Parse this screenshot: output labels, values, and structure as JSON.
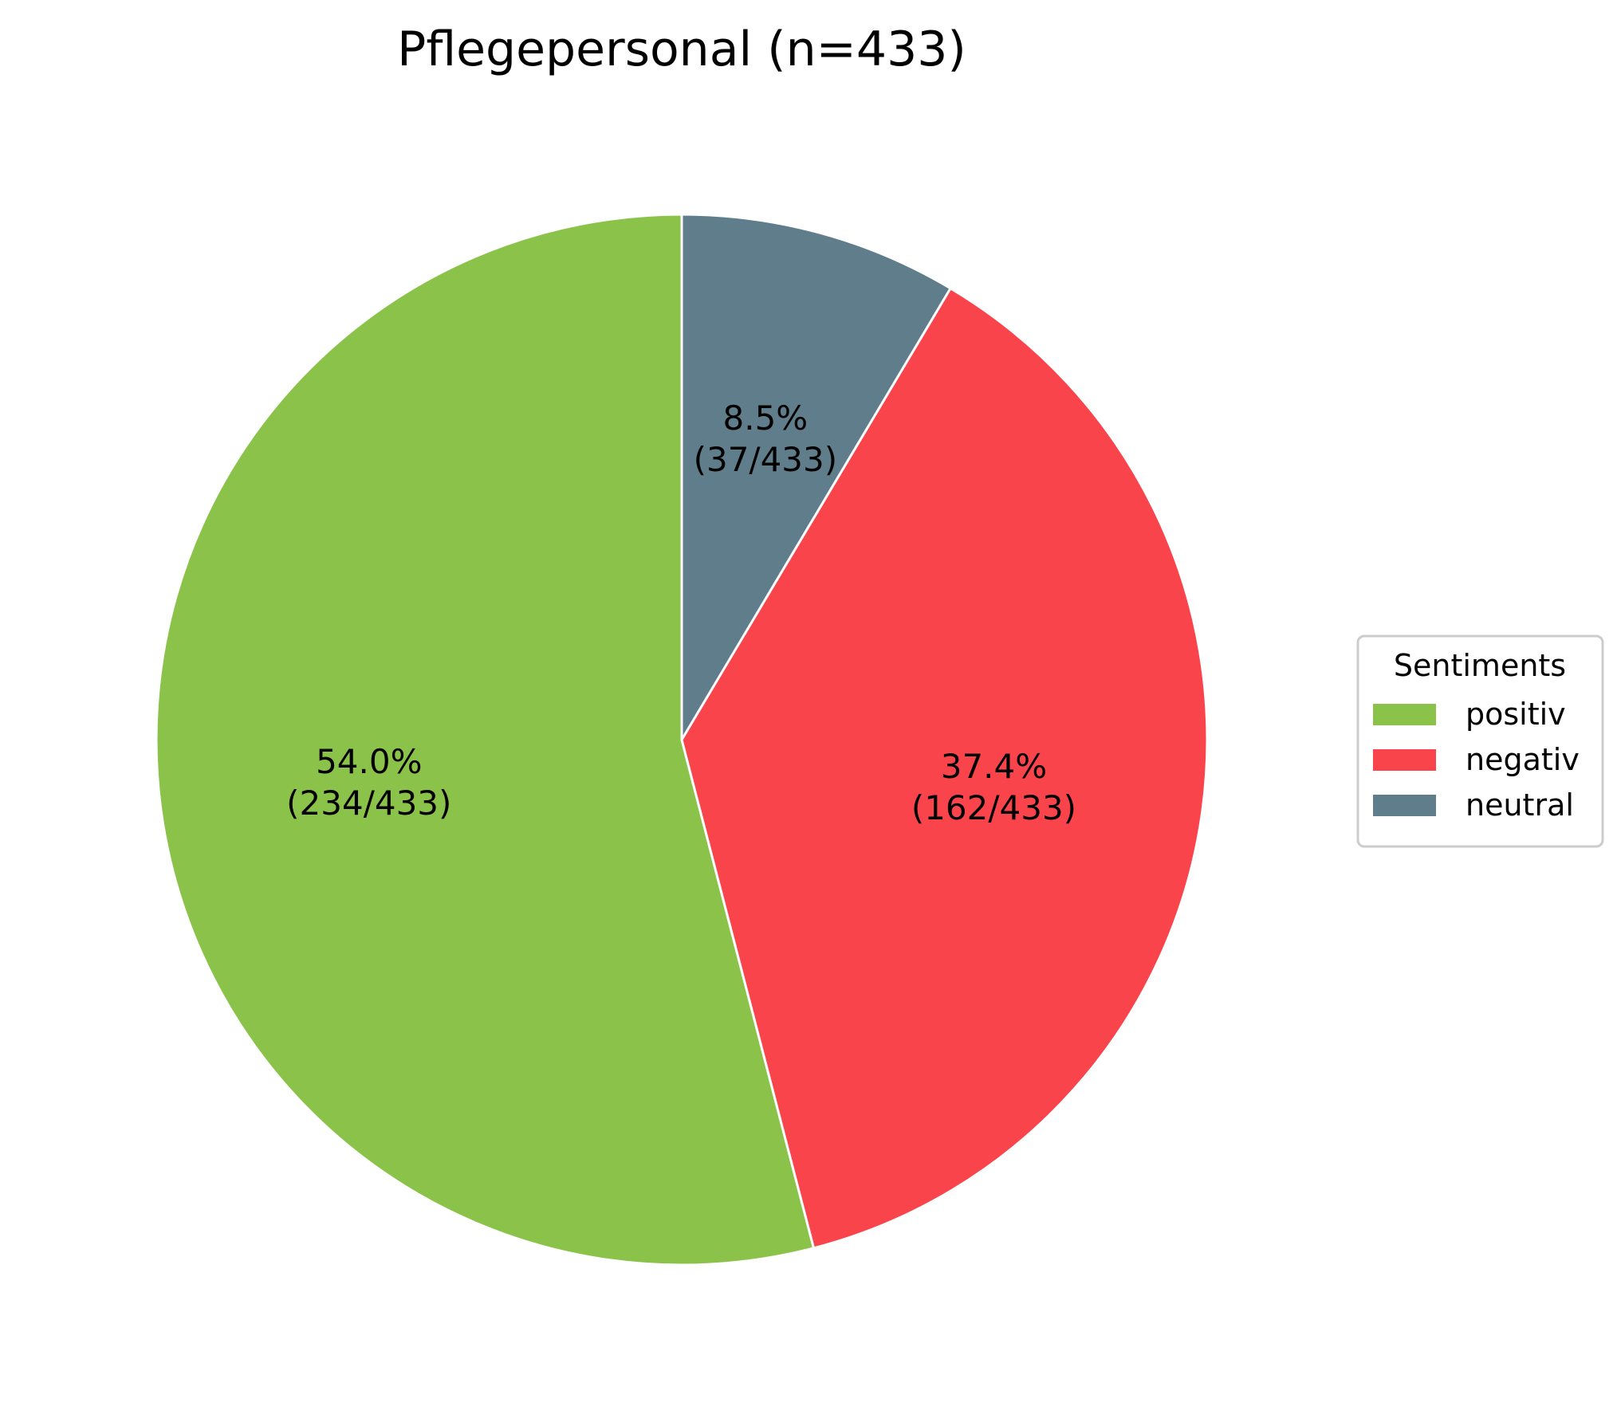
{
  "chart_data": {
    "type": "pie",
    "title": "Pflegepersonal (n=433)",
    "total": 433,
    "start_angle_deg": 90,
    "direction": "counterclockwise",
    "slices": [
      {
        "label": "positiv",
        "value": 234,
        "percent_label": "54.0%",
        "count_label": "(234/433)",
        "color": "#8bc34a"
      },
      {
        "label": "negativ",
        "value": 162,
        "percent_label": "37.4%",
        "count_label": "(162/433)",
        "color": "#fa444b"
      },
      {
        "label": "neutral",
        "value": 37,
        "percent_label": "8.5%",
        "count_label": "(37/433)",
        "color": "#607d8b"
      }
    ],
    "legend": {
      "title": "Sentiments",
      "placement": "right-center"
    }
  }
}
